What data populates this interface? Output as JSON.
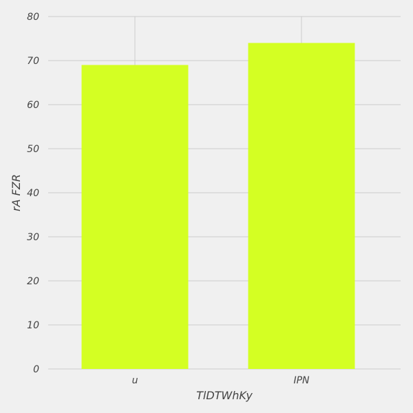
{
  "chart_data": {
    "type": "bar",
    "categories": [
      "u",
      "IPN"
    ],
    "values": [
      69,
      74
    ],
    "xlabel": "TlDTWhKy",
    "ylabel": "rA FZR",
    "ylim": [
      0,
      80
    ],
    "yticks": [
      0,
      10,
      20,
      30,
      40,
      50,
      60,
      70,
      80
    ],
    "grid": true,
    "bar_color": "#d4ff23",
    "background_color": "#f0f0f0",
    "grid_color": "#cbcbcb"
  }
}
